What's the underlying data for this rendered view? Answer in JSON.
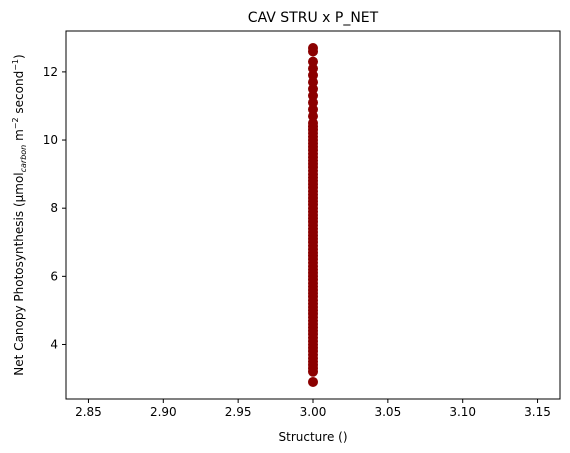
{
  "chart_data": {
    "type": "scatter",
    "title": "CAV STRU x P_NET",
    "xlabel": "Structure ()",
    "ylabel_parts": {
      "prefix": "Net Canopy Photosynthesis (µmol",
      "sub": "carbon",
      "mid": " m",
      "sup1": "−2",
      "mid2": " second",
      "sup2": "−1",
      "suffix": ")"
    },
    "xlim": [
      2.835,
      3.165
    ],
    "ylim": [
      2.4,
      13.2
    ],
    "x_ticks": [
      2.85,
      2.9,
      2.95,
      3.0,
      3.05,
      3.1,
      3.15
    ],
    "x_tick_labels": [
      "2.85",
      "2.90",
      "2.95",
      "3.00",
      "3.05",
      "3.10",
      "3.15"
    ],
    "y_ticks": [
      4,
      6,
      8,
      10,
      12
    ],
    "y_tick_labels": [
      "4",
      "6",
      "8",
      "10",
      "12"
    ],
    "marker_color": "#8b0000",
    "grid": false,
    "series": [
      {
        "x_value": 3.0,
        "y": [
          2.9,
          3.2,
          3.3,
          3.4,
          3.5,
          3.6,
          3.7,
          3.8,
          3.9,
          4.0,
          4.1,
          4.2,
          4.3,
          4.4,
          4.5,
          4.6,
          4.7,
          4.8,
          4.9,
          5.0,
          5.1,
          5.2,
          5.3,
          5.4,
          5.5,
          5.6,
          5.7,
          5.8,
          5.9,
          6.0,
          6.1,
          6.2,
          6.3,
          6.4,
          6.5,
          6.6,
          6.7,
          6.8,
          6.9,
          7.0,
          7.1,
          7.2,
          7.3,
          7.4,
          7.5,
          7.6,
          7.7,
          7.8,
          7.9,
          8.0,
          8.1,
          8.2,
          8.3,
          8.4,
          8.5,
          8.6,
          8.7,
          8.8,
          8.9,
          9.0,
          9.1,
          9.2,
          9.3,
          9.4,
          9.5,
          9.6,
          9.7,
          9.8,
          9.9,
          10.0,
          10.1,
          10.2,
          10.3,
          10.4,
          10.5,
          10.7,
          10.9,
          11.1,
          11.3,
          11.5,
          11.7,
          11.9,
          12.1,
          12.3,
          12.6,
          12.7
        ]
      }
    ]
  }
}
